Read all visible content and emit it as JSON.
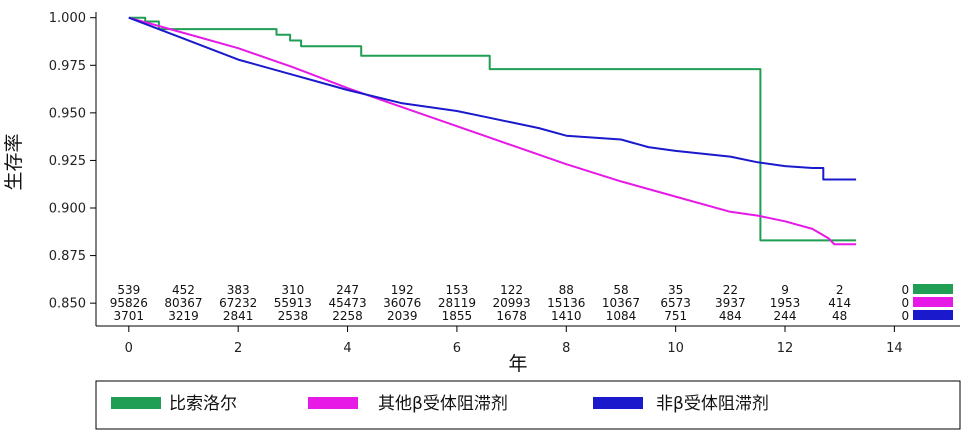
{
  "chart_data": {
    "type": "line",
    "xlabel": "年",
    "ylabel": "生存率",
    "xlim": [
      -0.6,
      15.2
    ],
    "ylim": [
      0.838,
      1.003
    ],
    "xticks": [
      0,
      2,
      4,
      6,
      8,
      10,
      12,
      14
    ],
    "yticks": [
      0.85,
      0.875,
      0.9,
      0.925,
      0.95,
      0.975,
      1.0
    ],
    "ytick_labels": [
      "0.850",
      "0.875",
      "0.900",
      "0.925",
      "0.950",
      "0.975",
      "1.000"
    ],
    "grid": false,
    "legend_position": "bottom",
    "series": [
      {
        "name": "比索洛尔",
        "color": "#1f9e54",
        "points": [
          [
            0,
            1.0
          ],
          [
            0.3,
            1.0
          ],
          [
            0.3,
            0.998
          ],
          [
            0.55,
            0.998
          ],
          [
            0.55,
            0.994
          ],
          [
            2.7,
            0.994
          ],
          [
            2.7,
            0.991
          ],
          [
            2.95,
            0.991
          ],
          [
            2.95,
            0.988
          ],
          [
            3.15,
            0.988
          ],
          [
            3.15,
            0.985
          ],
          [
            4.25,
            0.985
          ],
          [
            4.25,
            0.98
          ],
          [
            6.6,
            0.98
          ],
          [
            6.6,
            0.973
          ],
          [
            11.55,
            0.973
          ],
          [
            11.55,
            0.883
          ],
          [
            13.3,
            0.883
          ]
        ],
        "at_risk": [
          539,
          452,
          383,
          310,
          247,
          192,
          153,
          122,
          88,
          58,
          35,
          22,
          9,
          2,
          0
        ]
      },
      {
        "name": "其他β受体阻滞剂",
        "color": "#e619e6",
        "points": [
          [
            0,
            1.0
          ],
          [
            1,
            0.992
          ],
          [
            2,
            0.984
          ],
          [
            3,
            0.974
          ],
          [
            4,
            0.963
          ],
          [
            5,
            0.953
          ],
          [
            6,
            0.943
          ],
          [
            7,
            0.933
          ],
          [
            8,
            0.923
          ],
          [
            9,
            0.914
          ],
          [
            10,
            0.906
          ],
          [
            11,
            0.898
          ],
          [
            11.5,
            0.896
          ],
          [
            12,
            0.893
          ],
          [
            12.5,
            0.889
          ],
          [
            12.8,
            0.884
          ],
          [
            12.9,
            0.881
          ],
          [
            13.3,
            0.881
          ]
        ],
        "at_risk": [
          95826,
          80367,
          67232,
          55913,
          45473,
          36076,
          28119,
          20993,
          15136,
          10367,
          6573,
          3937,
          1953,
          414,
          0
        ]
      },
      {
        "name": "非β受体阻滞剂",
        "color": "#1a1acc",
        "points": [
          [
            0,
            1.0
          ],
          [
            1,
            0.989
          ],
          [
            2,
            0.978
          ],
          [
            3,
            0.97
          ],
          [
            3.5,
            0.966
          ],
          [
            4,
            0.962
          ],
          [
            5,
            0.955
          ],
          [
            6,
            0.951
          ],
          [
            6.5,
            0.948
          ],
          [
            7,
            0.945
          ],
          [
            7.5,
            0.942
          ],
          [
            8,
            0.938
          ],
          [
            9,
            0.936
          ],
          [
            9.5,
            0.932
          ],
          [
            10,
            0.93
          ],
          [
            11,
            0.927
          ],
          [
            11.5,
            0.924
          ],
          [
            12,
            0.922
          ],
          [
            12.5,
            0.921
          ],
          [
            12.7,
            0.921
          ],
          [
            12.7,
            0.915
          ],
          [
            13.3,
            0.915
          ]
        ],
        "at_risk": [
          3701,
          3219,
          2841,
          2538,
          2258,
          2039,
          1855,
          1678,
          1410,
          1084,
          751,
          484,
          244,
          48,
          0
        ]
      }
    ],
    "at_risk_x": [
      0,
      1,
      2,
      3,
      4,
      5,
      6,
      7,
      8,
      9,
      10,
      11,
      12,
      13,
      14.2
    ]
  }
}
